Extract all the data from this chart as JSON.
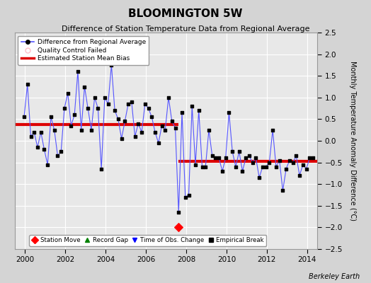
{
  "title": "BLOOMINGTON 5W",
  "subtitle": "Difference of Station Temperature Data from Regional Average",
  "ylabel": "Monthly Temperature Anomaly Difference (°C)",
  "ylim": [
    -2.5,
    2.5
  ],
  "xlim": [
    1999.5,
    2014.5
  ],
  "xticks": [
    2000,
    2002,
    2004,
    2006,
    2008,
    2010,
    2012,
    2014
  ],
  "yticks": [
    -2.5,
    -2,
    -1.5,
    -1,
    -0.5,
    0,
    0.5,
    1,
    1.5,
    2,
    2.5
  ],
  "fig_facecolor": "#d4d4d4",
  "ax_facecolor": "#e8e8e8",
  "grid_color": "#ffffff",
  "bias1_start": 1999.5,
  "bias1_end": 2007.62,
  "bias1_value": 0.37,
  "bias2_start": 2007.62,
  "bias2_end": 2014.5,
  "bias2_value": -0.47,
  "station_move_x": 2007.62,
  "station_move_y": -2.0,
  "line_color": "#5555ff",
  "marker_color": "#000000",
  "bias_color": "#dd0000",
  "berkeley_earth_text": "Berkeley Earth",
  "series_x": [
    1999.958,
    2000.125,
    2000.292,
    2000.458,
    2000.625,
    2000.792,
    2000.958,
    2001.125,
    2001.292,
    2001.458,
    2001.625,
    2001.792,
    2001.958,
    2002.125,
    2002.292,
    2002.458,
    2002.625,
    2002.792,
    2002.958,
    2003.125,
    2003.292,
    2003.458,
    2003.625,
    2003.792,
    2003.958,
    2004.125,
    2004.292,
    2004.458,
    2004.625,
    2004.792,
    2004.958,
    2005.125,
    2005.292,
    2005.458,
    2005.625,
    2005.792,
    2005.958,
    2006.125,
    2006.292,
    2006.458,
    2006.625,
    2006.792,
    2006.958,
    2007.125,
    2007.292,
    2007.458,
    2007.625,
    2007.792,
    2007.958,
    2008.125,
    2008.292,
    2008.458,
    2008.625,
    2008.792,
    2008.958,
    2009.125,
    2009.292,
    2009.458,
    2009.625,
    2009.792,
    2009.958,
    2010.125,
    2010.292,
    2010.458,
    2010.625,
    2010.792,
    2010.958,
    2011.125,
    2011.292,
    2011.458,
    2011.625,
    2011.792,
    2011.958,
    2012.125,
    2012.292,
    2012.458,
    2012.625,
    2012.792,
    2012.958,
    2013.125,
    2013.292,
    2013.458,
    2013.625,
    2013.792,
    2013.958,
    2014.125,
    2014.292
  ],
  "series_y": [
    0.55,
    1.3,
    0.1,
    0.2,
    -0.15,
    0.2,
    -0.2,
    -0.55,
    0.55,
    0.25,
    -0.35,
    -0.25,
    0.75,
    1.1,
    0.35,
    0.6,
    1.6,
    0.25,
    1.25,
    0.75,
    0.25,
    1.0,
    0.75,
    -0.65,
    1.0,
    0.85,
    1.75,
    0.7,
    0.5,
    0.05,
    0.45,
    0.85,
    0.9,
    0.1,
    0.4,
    0.2,
    0.85,
    0.75,
    0.55,
    0.2,
    -0.05,
    0.35,
    0.25,
    1.0,
    0.45,
    0.3,
    -1.65,
    0.65,
    -1.3,
    -1.25,
    0.8,
    -0.55,
    0.7,
    -0.6,
    -0.6,
    0.25,
    -0.35,
    -0.4,
    -0.4,
    -0.7,
    -0.4,
    0.65,
    -0.25,
    -0.6,
    -0.25,
    -0.7,
    -0.4,
    -0.35,
    -0.5,
    -0.4,
    -0.85,
    -0.6,
    -0.6,
    -0.5,
    0.25,
    -0.6,
    -0.45,
    -1.15,
    -0.65,
    -0.45,
    -0.5,
    -0.35,
    -0.8,
    -0.55,
    -0.65,
    -0.4,
    -0.4
  ]
}
